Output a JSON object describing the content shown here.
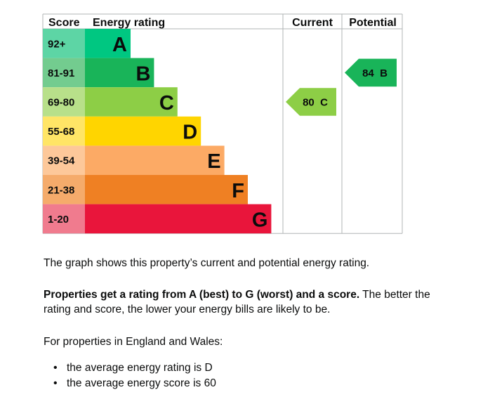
{
  "headers": {
    "score": "Score",
    "rating": "Energy rating",
    "current": "Current",
    "potential": "Potential"
  },
  "chart_data": {
    "type": "bar",
    "categories": [
      "A",
      "B",
      "C",
      "D",
      "E",
      "F",
      "G"
    ],
    "bands": [
      {
        "letter": "A",
        "range": "92+",
        "color": "#00c781",
        "score_bg": "#5dd5a5"
      },
      {
        "letter": "B",
        "range": "81-91",
        "color": "#19b459",
        "score_bg": "#73cc8f"
      },
      {
        "letter": "C",
        "range": "69-80",
        "color": "#8dce46",
        "score_bg": "#b8e08a"
      },
      {
        "letter": "D",
        "range": "55-68",
        "color": "#ffd500",
        "score_bg": "#ffe566"
      },
      {
        "letter": "E",
        "range": "39-54",
        "color": "#fcaa65",
        "score_bg": "#fdc89a"
      },
      {
        "letter": "F",
        "range": "21-38",
        "color": "#ef8023",
        "score_bg": "#f5ab6b"
      },
      {
        "letter": "G",
        "range": "1-20",
        "color": "#e9153b",
        "score_bg": "#f07b8e"
      }
    ],
    "current": {
      "score": 80,
      "band": "C",
      "label": "80 C",
      "color": "#8dce46"
    },
    "potential": {
      "score": 84,
      "band": "B",
      "label": "84 B",
      "color": "#19b459"
    }
  },
  "text": {
    "p1": "The graph shows this property’s current and potential energy rating.",
    "p2_bold": "Properties get a rating from A (best) to G (worst) and a score.",
    "p2_rest": " The better the rating and score, the lower your energy bills are likely to be.",
    "p3": "For properties in England and Wales:",
    "bullets": [
      "the average energy rating is D",
      "the average energy score is 60"
    ]
  }
}
